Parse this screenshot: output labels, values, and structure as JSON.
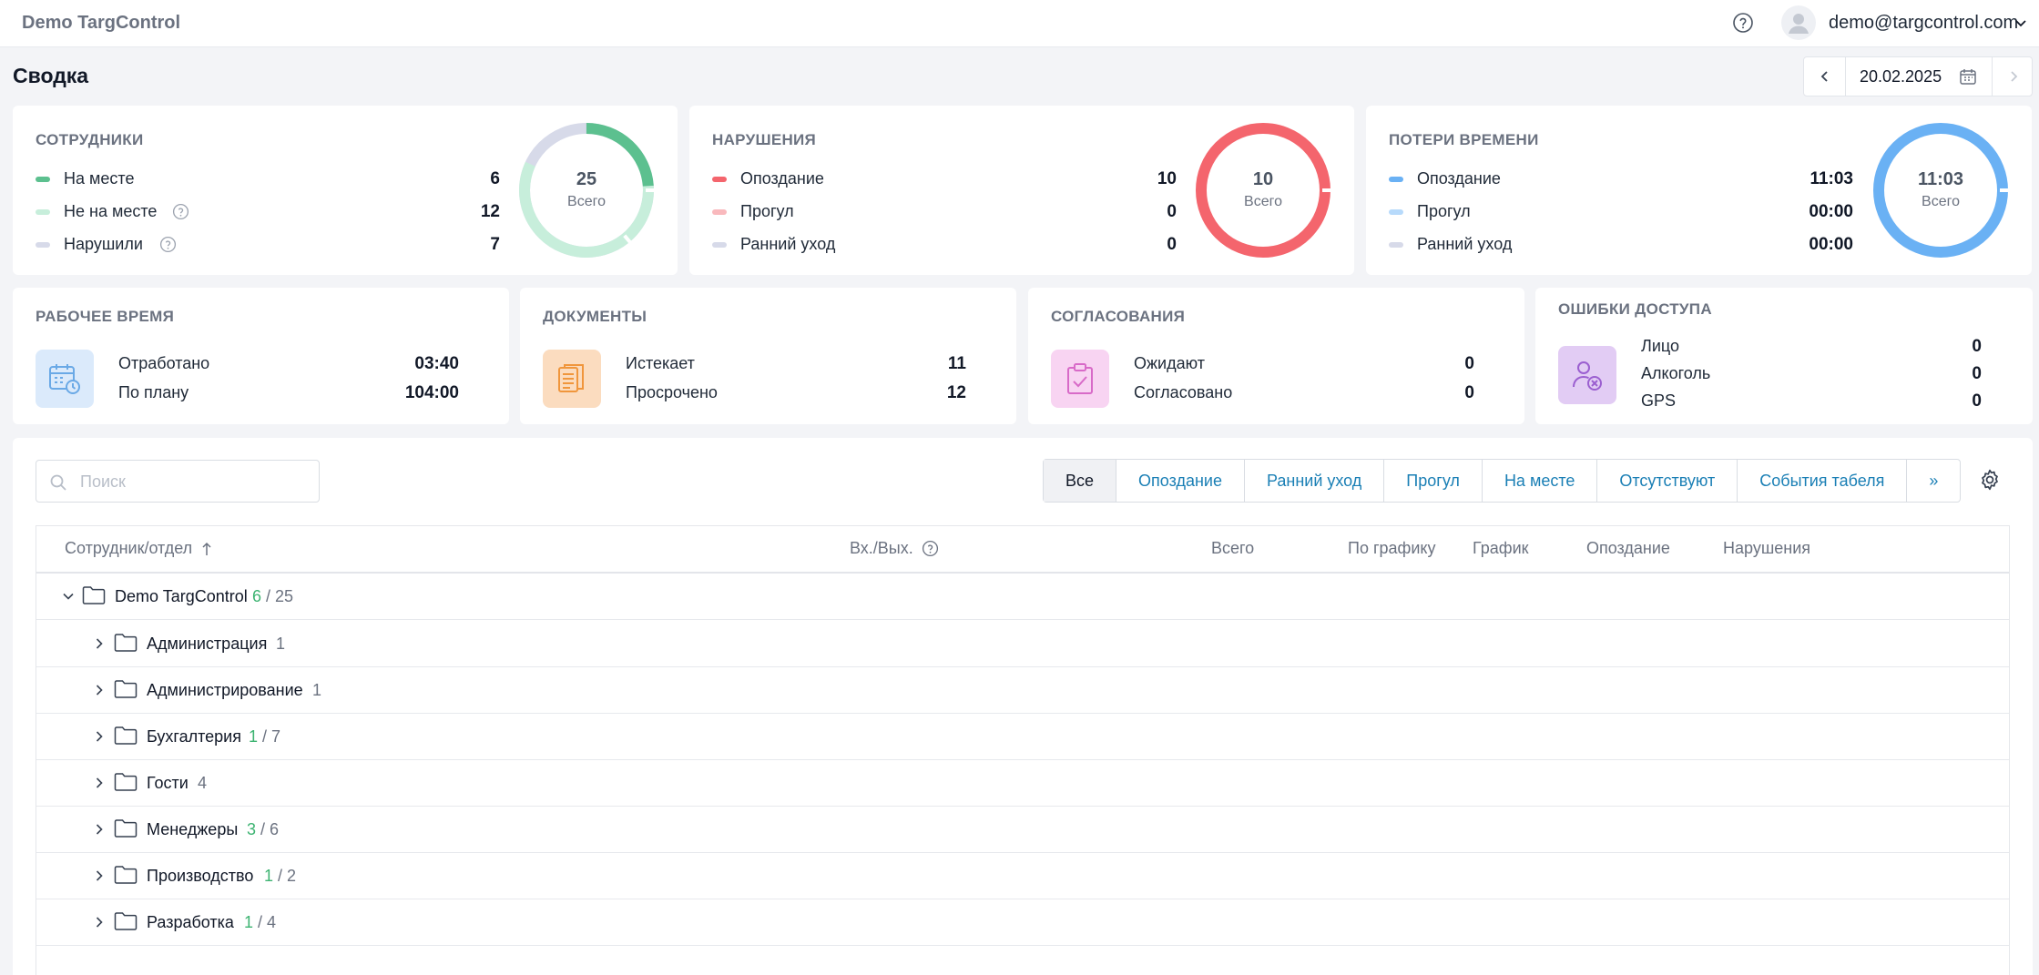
{
  "header": {
    "brand": "Demo TargControl",
    "user_email": "demo@targcontrol.com"
  },
  "page": {
    "title": "Сводка",
    "date": "20.02.2025"
  },
  "employees": {
    "title": "СОТРУДНИКИ",
    "rows": [
      {
        "label": "На месте",
        "value": "6",
        "color": "#5cc08f"
      },
      {
        "label": "Не на месте",
        "value": "12",
        "color": "#c7eedb"
      },
      {
        "label": "Нарушили",
        "value": "7",
        "color": "#d7dae9"
      }
    ],
    "total": "25",
    "total_label": "Всего"
  },
  "violations": {
    "title": "НАРУШЕНИЯ",
    "rows": [
      {
        "label": "Опоздание",
        "value": "10",
        "color": "#f4656d"
      },
      {
        "label": "Прогул",
        "value": "0",
        "color": "#f9b9bd"
      },
      {
        "label": "Ранний уход",
        "value": "0",
        "color": "#d7dae9"
      }
    ],
    "total": "10",
    "total_label": "Всего"
  },
  "time_loss": {
    "title": "ПОТЕРИ ВРЕМЕНИ",
    "rows": [
      {
        "label": "Опоздание",
        "value": "11:03",
        "color": "#6ab1f4"
      },
      {
        "label": "Прогул",
        "value": "00:00",
        "color": "#b7dafb"
      },
      {
        "label": "Ранний уход",
        "value": "00:00",
        "color": "#d7dae9"
      }
    ],
    "total": "11:03",
    "total_label": "Всего"
  },
  "work_time": {
    "title": "РАБОЧЕЕ ВРЕМЯ",
    "rows": [
      {
        "label": "Отработано",
        "value": "03:40"
      },
      {
        "label": "По плану",
        "value": "104:00"
      }
    ]
  },
  "documents": {
    "title": "ДОКУМЕНТЫ",
    "rows": [
      {
        "label": "Истекает",
        "value": "11"
      },
      {
        "label": "Просрочено",
        "value": "12"
      }
    ]
  },
  "approvals": {
    "title": "СОГЛАСОВАНИЯ",
    "rows": [
      {
        "label": "Ожидают",
        "value": "0"
      },
      {
        "label": "Согласовано",
        "value": "0"
      }
    ]
  },
  "access_errors": {
    "title": "ОШИБКИ ДОСТУПА",
    "rows": [
      {
        "label": "Лицо",
        "value": "0"
      },
      {
        "label": "Алкоголь",
        "value": "0"
      },
      {
        "label": "GPS",
        "value": "0"
      }
    ]
  },
  "search": {
    "placeholder": "Поиск"
  },
  "filters": [
    "Все",
    "Опоздание",
    "Ранний уход",
    "Прогул",
    "На месте",
    "Отсутствуют",
    "События табеля",
    "»"
  ],
  "table": {
    "columns": {
      "employee": "Сотрудник/отдел",
      "in_out": "Вх./Вых.",
      "total": "Всего",
      "by_schedule": "По графику",
      "schedule": "График",
      "late": "Опоздание",
      "violations": "Нарушения"
    },
    "root": {
      "name": "Demo TargControl",
      "present": "6",
      "sep": " / ",
      "total": "25"
    },
    "departments": [
      {
        "name": "Администрация",
        "present": "",
        "sep": "",
        "total": "1"
      },
      {
        "name": "Администрирование",
        "present": "",
        "sep": "",
        "total": "1"
      },
      {
        "name": "Бухгалтерия",
        "present": "1",
        "sep": " / ",
        "total": "7"
      },
      {
        "name": "Гости",
        "present": "",
        "sep": "",
        "total": "4"
      },
      {
        "name": "Менеджеры",
        "present": "3",
        "sep": " / ",
        "total": "6"
      },
      {
        "name": "Производство",
        "present": "1",
        "sep": " / ",
        "total": "2"
      },
      {
        "name": "Разработка",
        "present": "1",
        "sep": " / ",
        "total": "4"
      }
    ]
  }
}
